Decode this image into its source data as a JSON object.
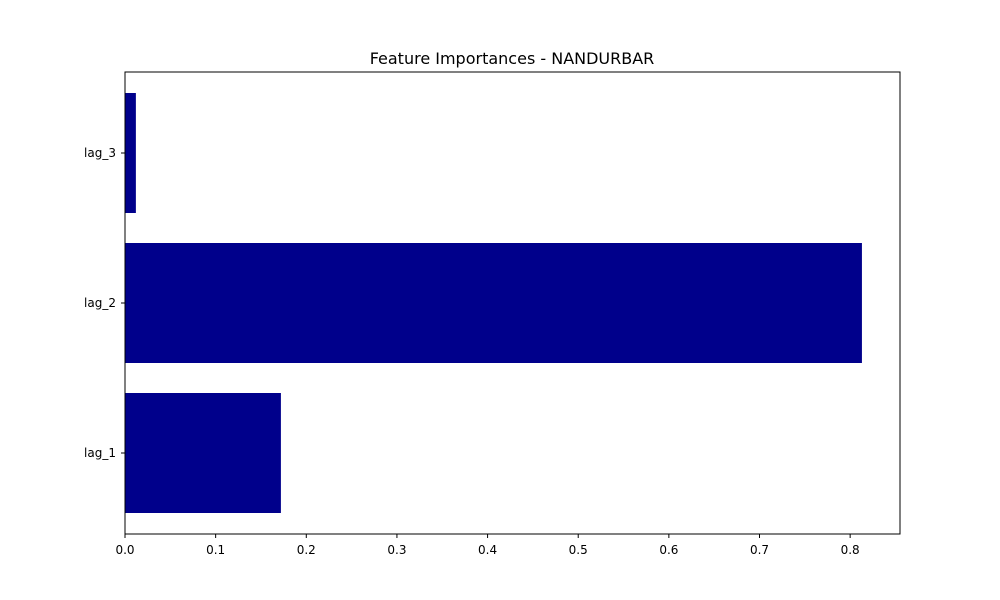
{
  "chart_data": {
    "type": "bar",
    "orientation": "horizontal",
    "title": "Feature Importances - NANDURBAR",
    "xlabel": "",
    "ylabel": "",
    "categories": [
      "lag_1",
      "lag_2",
      "lag_3"
    ],
    "values": [
      0.172,
      0.813,
      0.012
    ],
    "xlim": [
      0,
      0.855
    ],
    "xticks": [
      "0.0",
      "0.1",
      "0.2",
      "0.3",
      "0.4",
      "0.5",
      "0.6",
      "0.7",
      "0.8"
    ],
    "bar_color": "#00008b",
    "grid": false,
    "legend": "none"
  }
}
